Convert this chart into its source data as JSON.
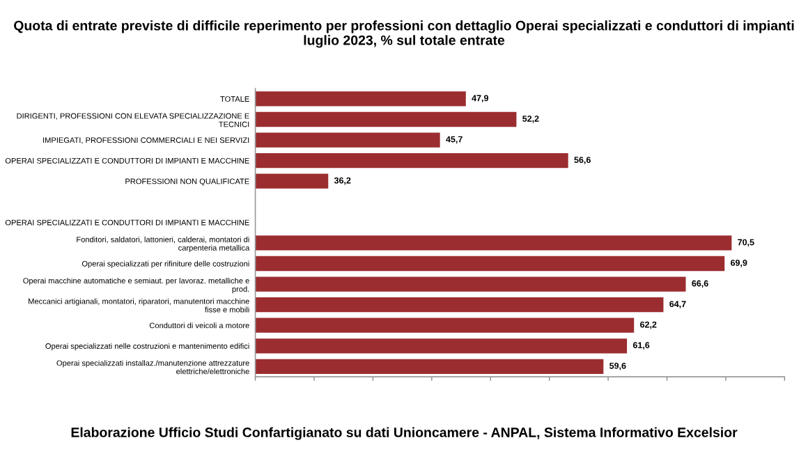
{
  "chart_data": {
    "type": "bar",
    "orientation": "horizontal",
    "title": "Quota di entrate previste di difficile reperimento per professioni con dettaglio Operai specializzati e conduttori di impianti\nluglio 2023, % sul totale entrate",
    "categories": [
      "TOTALE",
      "DIRIGENTI, PROFESSIONI CON ELEVATA SPECIALIZZAZIONE E TECNICI",
      "IMPIEGATI, PROFESSIONI COMMERCIALI E NEI SERVIZI",
      "OPERAI SPECIALIZZATI E CONDUTTORI DI IMPIANTI E MACCHINE",
      "PROFESSIONI NON QUALIFICATE",
      null,
      "OPERAI SPECIALIZZATI E CONDUTTORI DI IMPIANTI E MACCHINE",
      "Fonditori, saldatori, lattonieri, calderai, montatori di carpenteria metallica",
      "Operai specializzati per rifiniture delle costruzioni",
      "Operai macchine automatiche e semiaut. per lavoraz. metalliche e prod.",
      "Meccanici artigianali, montatori, riparatori, manutentori macchine fisse e mobili",
      "Conduttori di veicoli a motore",
      "Operai specializzati nelle costruzioni e mantenimento edifici",
      "Operai specializzati installaz./manutenzione attrezzature elettriche/elettroniche"
    ],
    "values": [
      47.9,
      52.2,
      45.7,
      56.6,
      36.2,
      null,
      null,
      70.5,
      69.9,
      66.6,
      64.7,
      62.2,
      61.6,
      59.6
    ],
    "value_labels": [
      "47,9",
      "52,2",
      "45,7",
      "56,6",
      "36,2",
      null,
      null,
      "70,5",
      "69,9",
      "66,6",
      "64,7",
      "62,2",
      "61,6",
      "59,6"
    ],
    "color": "#9b2d30",
    "xlim": [
      30,
      75
    ],
    "xticks": [
      {
        "value": 30,
        "label": null
      },
      {
        "value": 35,
        "label": null
      },
      {
        "value": 40,
        "label": null
      },
      {
        "value": 45,
        "label": null
      },
      {
        "value": 50,
        "label": null
      },
      {
        "value": 55,
        "label": null
      },
      {
        "value": 60,
        "label": null
      },
      {
        "value": 65,
        "label": null
      },
      {
        "value": 70,
        "label": null
      },
      {
        "value": 75,
        "label": null
      }
    ],
    "tick_labels": "y",
    "grid": false,
    "legend": false,
    "annotations": [
      "Elaborazione Ufficio Studi Confartigianato su dati Unioncamere - ANPAL, Sistema Informativo Excelsior"
    ]
  }
}
